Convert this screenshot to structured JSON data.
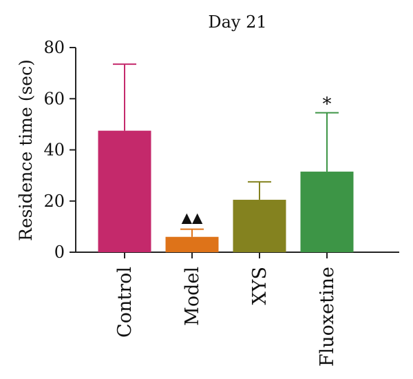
{
  "chart_data": {
    "type": "bar",
    "title": "Day 21",
    "ylabel": "Residence time (sec)",
    "xlabel": "",
    "ylim": [
      0,
      80
    ],
    "yticks": [
      0,
      20,
      40,
      60,
      80
    ],
    "grid": false,
    "legend": "none",
    "categories": [
      "Control",
      "Model",
      "XYS",
      "Fluoxetine"
    ],
    "values": [
      47.5,
      6,
      20.5,
      31.5
    ],
    "errors": [
      26,
      3,
      7,
      23
    ],
    "colors": [
      "#c4296b",
      "#de7319",
      "#84821f",
      "#3d9546"
    ],
    "annotations": [
      "",
      "▲▲",
      "",
      "*"
    ]
  }
}
